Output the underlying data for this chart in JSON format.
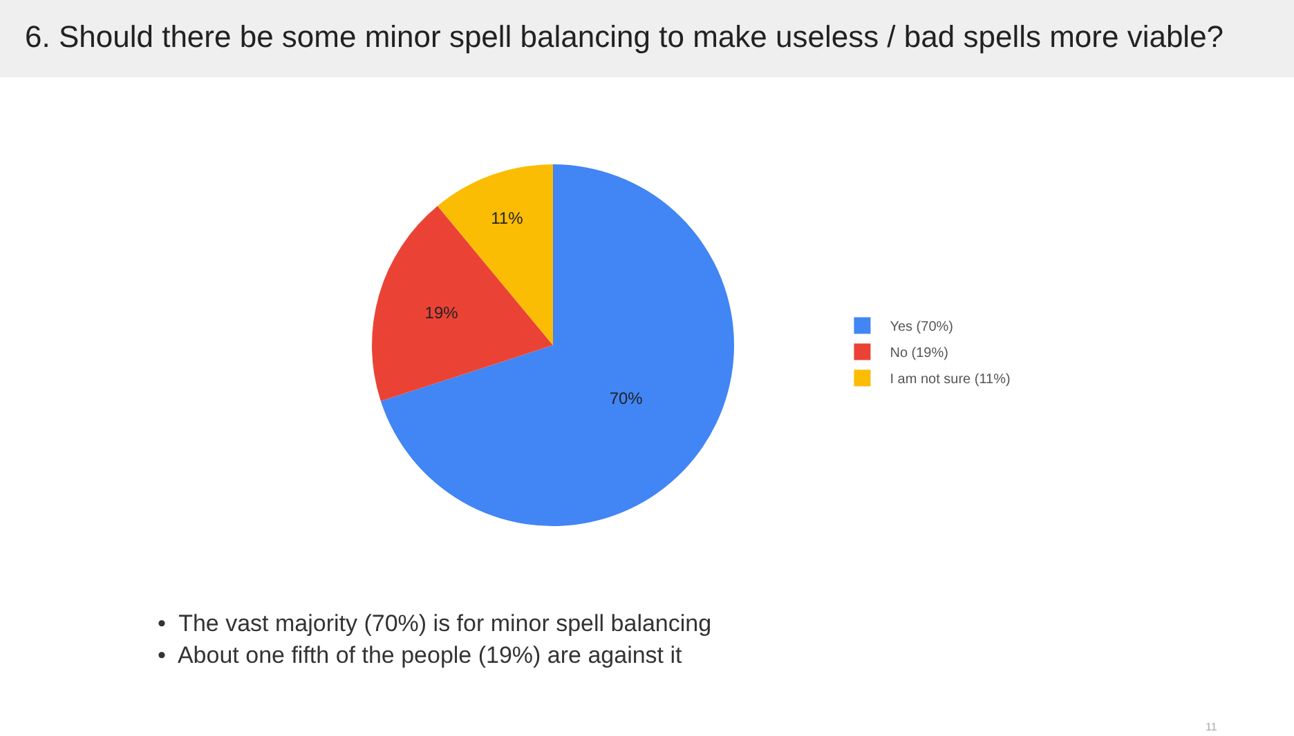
{
  "chart_data": {
    "type": "pie",
    "title": "6. Should there be some minor spell balancing to make useless / bad spells more viable?",
    "categories": [
      "Yes (70%)",
      "No (19%)",
      "I am not sure (11%)"
    ],
    "values": [
      70,
      19,
      11
    ],
    "colors": [
      "#4285f4",
      "#ea4335",
      "#fbbc04"
    ],
    "value_labels": [
      "70%",
      "19%",
      "11%"
    ],
    "legend": "right",
    "annotations": [
      "•  The vast majority (70%) is for minor spell balancing",
      "•  About one fifth of the people (19%) are against it",
      "11"
    ]
  }
}
